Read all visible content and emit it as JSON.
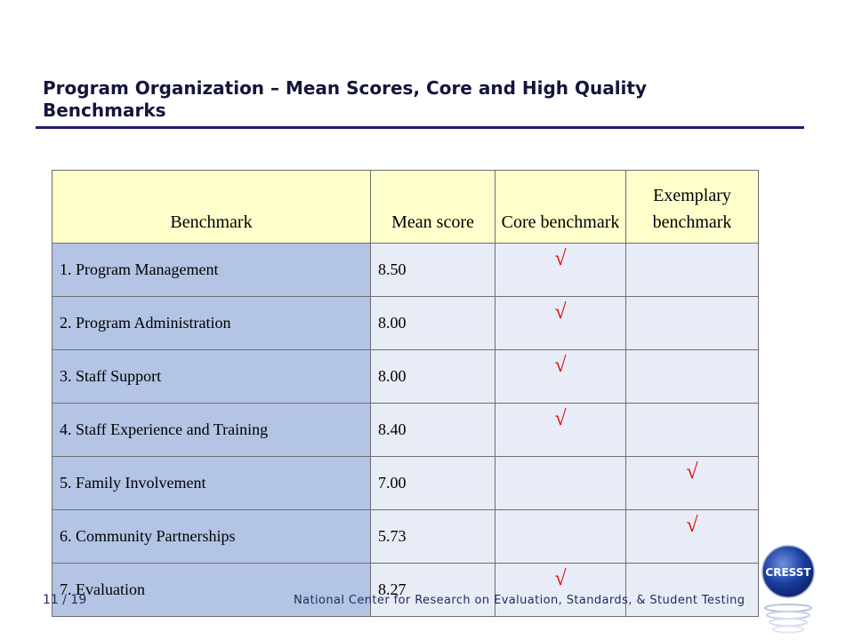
{
  "slide": {
    "title": "Program Organization – Mean Scores, Core and High Quality Benchmarks",
    "page_number": "11 / 19",
    "footer": "National Center for Research on Evaluation, Standards, & Student Testing",
    "logo_text": "CRESST"
  },
  "table": {
    "headers": {
      "benchmark": "Benchmark",
      "mean_score": "Mean score",
      "core": "Core benchmark",
      "exemplary": "Exemplary benchmark"
    },
    "check_mark": "√",
    "rows": [
      {
        "benchmark": "1. Program Management",
        "mean_score": "8.50",
        "core": "√",
        "exemplary": ""
      },
      {
        "benchmark": "2. Program Administration",
        "mean_score": "8.00",
        "core": "√",
        "exemplary": ""
      },
      {
        "benchmark": "3. Staff Support",
        "mean_score": "8.00",
        "core": "√",
        "exemplary": ""
      },
      {
        "benchmark": "4. Staff Experience and Training",
        "mean_score": "8.40",
        "core": "√",
        "exemplary": ""
      },
      {
        "benchmark": "5. Family Involvement",
        "mean_score": "7.00",
        "core": "",
        "exemplary": "√"
      },
      {
        "benchmark": "6. Community Partnerships",
        "mean_score": "5.73",
        "core": "",
        "exemplary": "√"
      },
      {
        "benchmark": "7. Evaluation",
        "mean_score": "8.27",
        "core": "√",
        "exemplary": ""
      }
    ]
  },
  "colors": {
    "header_bg": "#ffffcc",
    "name_col_bg": "#b3c4e4",
    "cell_bg": "#e8ecf6",
    "check": "#e00000",
    "title_rule": "#1f1f6e",
    "logo_blue": "#1a3fa0"
  }
}
